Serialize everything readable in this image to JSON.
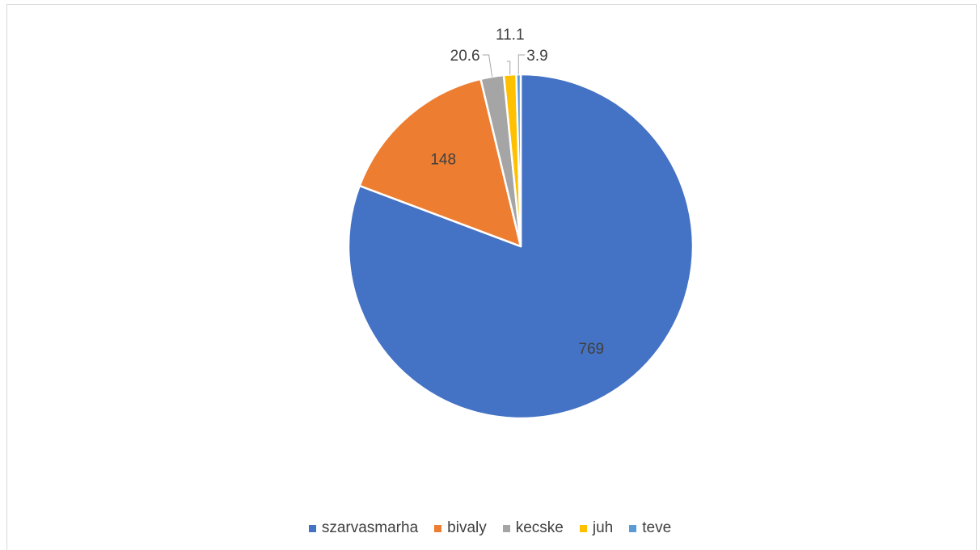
{
  "chart_data": {
    "type": "pie",
    "title": "",
    "categories": [
      "szarvasmarha",
      "bivaly",
      "kecske",
      "juh",
      "teve"
    ],
    "values": [
      769,
      148,
      20.6,
      11.1,
      3.9
    ],
    "labels": [
      "769",
      "148",
      "20.6",
      "11.1",
      "3.9"
    ],
    "colors": [
      "#4472C4",
      "#ED7D31",
      "#A5A5A5",
      "#FFC000",
      "#5B9BD5"
    ],
    "legend_position": "bottom",
    "start_angle": "12 o'clock",
    "direction": "clockwise"
  }
}
